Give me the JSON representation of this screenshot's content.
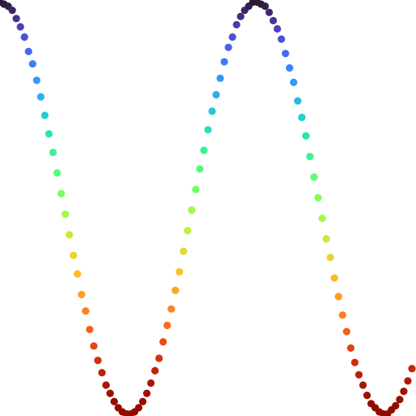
{
  "chart_data": {
    "type": "scatter",
    "x": [
      0.0,
      0.1,
      0.2,
      0.3,
      0.4,
      0.5,
      0.6,
      0.7,
      0.8,
      0.9,
      1.0,
      1.1,
      1.2,
      1.3,
      1.4,
      1.5,
      1.6,
      1.7,
      1.8,
      1.9,
      2.0,
      2.1,
      2.2,
      2.3,
      2.4,
      2.5,
      2.6,
      2.7,
      2.8,
      2.9,
      3.0,
      3.1,
      3.2,
      3.3,
      3.4,
      3.5,
      3.6,
      3.7,
      3.8,
      3.9,
      4.0,
      4.1,
      4.2,
      4.3,
      4.4,
      4.5,
      4.6,
      4.7,
      4.8,
      4.9,
      5.0,
      5.1,
      5.2,
      5.3,
      5.4,
      5.5,
      5.6,
      5.7,
      5.8,
      5.9,
      6.0,
      6.1,
      6.2,
      6.3,
      6.4,
      6.5,
      6.6,
      6.7,
      6.8,
      6.9,
      7.0,
      7.1,
      7.2,
      7.3,
      7.4,
      7.5,
      7.6,
      7.7,
      7.8,
      7.9,
      8.0,
      8.1,
      8.2,
      8.3,
      8.4,
      8.5,
      8.6,
      8.7,
      8.8,
      8.9,
      9.0,
      9.1,
      9.2,
      9.3,
      9.4,
      9.5,
      9.6,
      9.7,
      9.8,
      9.9,
      10.0,
      10.1
    ],
    "values": [
      1.0,
      0.99,
      0.98,
      0.96,
      0.92,
      0.88,
      0.83,
      0.76,
      0.7,
      0.62,
      0.54,
      0.45,
      0.36,
      0.27,
      0.17,
      0.07,
      -0.03,
      -0.13,
      -0.23,
      -0.32,
      -0.42,
      -0.5,
      -0.59,
      -0.67,
      -0.74,
      -0.8,
      -0.86,
      -0.9,
      -0.94,
      -0.97,
      -0.99,
      -1.0,
      -1.0,
      -0.99,
      -0.97,
      -0.94,
      -0.9,
      -0.85,
      -0.79,
      -0.73,
      -0.65,
      -0.57,
      -0.49,
      -0.4,
      -0.31,
      -0.21,
      -0.11,
      -0.01,
      0.09,
      0.19,
      0.28,
      0.38,
      0.47,
      0.55,
      0.63,
      0.71,
      0.78,
      0.83,
      0.89,
      0.93,
      0.96,
      0.98,
      1.0,
      1.0,
      0.99,
      0.98,
      0.95,
      0.91,
      0.87,
      0.82,
      0.75,
      0.68,
      0.61,
      0.52,
      0.44,
      0.35,
      0.25,
      0.15,
      0.05,
      -0.05,
      -0.15,
      -0.24,
      -0.34,
      -0.43,
      -0.52,
      -0.6,
      -0.68,
      -0.75,
      -0.81,
      -0.86,
      -0.91,
      -0.95,
      -0.97,
      -0.99,
      -1.0,
      -1.0,
      -0.98,
      -0.96,
      -0.93,
      -0.89,
      -0.84,
      -0.78
    ],
    "xlim": [
      0,
      10.2
    ],
    "ylim": [
      -1.01,
      1.01
    ],
    "colormap": "turbo_r"
  }
}
